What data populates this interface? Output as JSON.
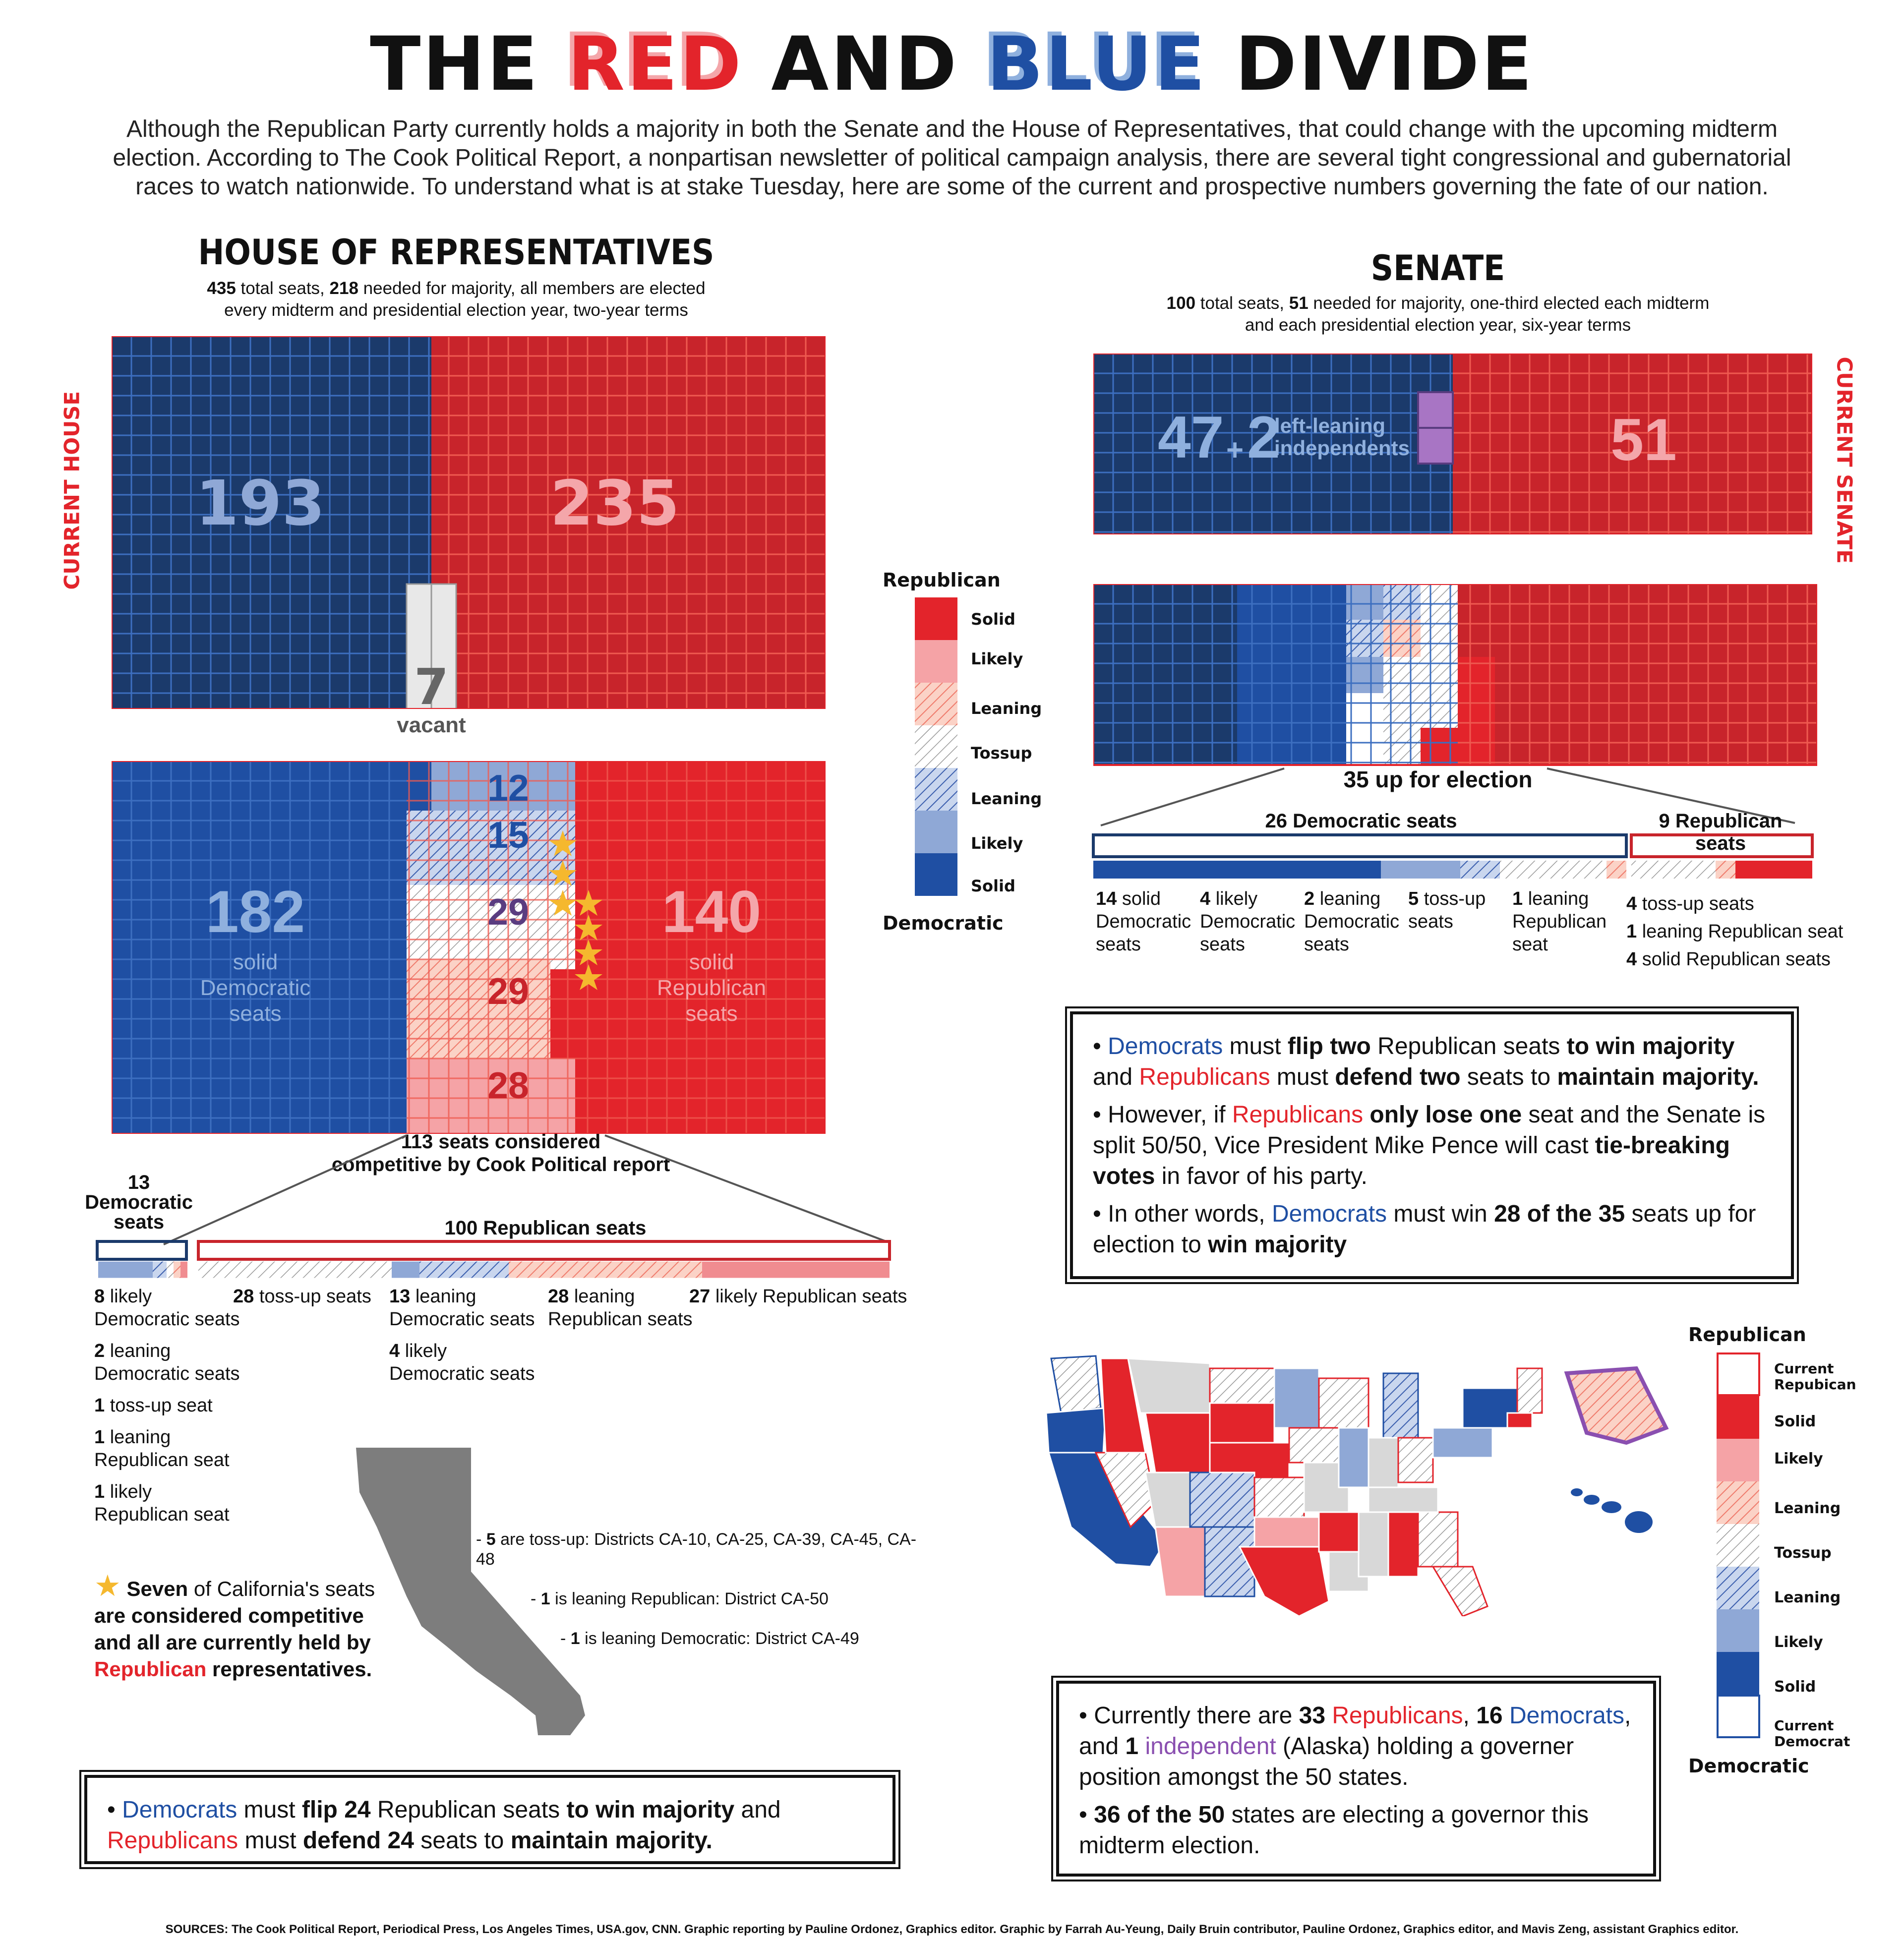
{
  "title": {
    "part1": "THE ",
    "red": "RED",
    "part2": " AND ",
    "blue": "BLUE",
    "part3": " DIVIDE"
  },
  "intro": "Although the Republican Party currently holds a majority in both the Senate and the House of Representatives, that could change with the upcoming midterm election. According to The Cook Political Report, a nonpartisan newsletter of political campaign analysis, there are several tight congressional and gubernatorial races to watch nationwide. To understand what is at stake Tuesday, here are some of the current and prospective numbers governing the fate of our nation.",
  "house": {
    "heading": "HOUSE OF REPRESENTATIVES",
    "sub_total": "435",
    "sub_t1": " total seats, ",
    "sub_majority": "218",
    "sub_t2": " needed for majority, all members are elected",
    "sub_line2": "every midterm and presidential election year, two-year terms",
    "current_label": "CURRENT HOUSE",
    "current": {
      "dem": "193",
      "rep": "235",
      "vacant": "7",
      "vacant_label": "vacant"
    },
    "forecast": {
      "solid_dem": "182",
      "solid_dem_label": [
        "solid",
        "Democratic",
        "seats"
      ],
      "likely_dem": "12",
      "lean_dem": "15",
      "tossup": "29",
      "lean_rep": "29",
      "likely_rep": "28",
      "solid_rep": "140",
      "solid_rep_label": [
        "solid",
        "Republican",
        "seats"
      ]
    },
    "competitive_num": "113",
    "competitive_t1": " seats considered",
    "competitive_t2": "competitive by Cook Political report",
    "dem_group_num": "13",
    "dem_group_label": "Democratic seats",
    "rep_group_label": "100 Republican seats",
    "breakdown_left": [
      {
        "n": "8",
        "t": " likely",
        "t2": "Democratic seats"
      },
      {
        "n": "2",
        "t": " leaning",
        "t2": "Democratic seats"
      },
      {
        "n": "1",
        "t": " toss-up seat",
        "t2": ""
      },
      {
        "n": "1",
        "t": " leaning",
        "t2": "Republican seat"
      },
      {
        "n": "1",
        "t": " likely",
        "t2": "Republican seat"
      }
    ],
    "breakdown_right": [
      {
        "n": "28",
        "t": " toss-up seats",
        "t2": ""
      },
      {
        "n": "13",
        "t": " leaning",
        "t2": "Democratic seats"
      },
      {
        "n": "4",
        "t": " likely",
        "t2": "Democratic seats"
      },
      {
        "n": "28",
        "t": " leaning",
        "t2": "Republican seats"
      },
      {
        "n": "27",
        "t": " likely Republican seats",
        "t2": ""
      }
    ],
    "ca_note": {
      "bold": "Seven",
      "t1": " of California's seats",
      "t2": "are considered competitive",
      "t3": "and all are currently held by",
      "rep": "Republican",
      "t4": " representatives."
    },
    "ca_list": [
      {
        "n": "5",
        "t": " are toss-up: Districts CA-10, CA-25, CA-39, CA-45, CA-48"
      },
      {
        "n": "1",
        "t": " is leaning Republican: District CA-50"
      },
      {
        "n": "1",
        "t": " is leaning Democratic: District CA-49"
      }
    ],
    "box": {
      "dem": "Democrats",
      "t1": " must ",
      "b1": "flip 24",
      "t2": " Republican seats ",
      "b2": "to win majority",
      "t3": " and ",
      "rep": "Republicans",
      "t4": " must ",
      "b3": "defend 24",
      "t5": " seats to ",
      "b4": "maintain majority."
    }
  },
  "senate": {
    "heading": "SENATE",
    "sub_total": "100",
    "sub_t1": " total seats, ",
    "sub_majority": "51",
    "sub_t2": " needed for majority, one-third elected each midterm",
    "sub_line2": "and each presidential election year, six-year terms",
    "current_label": "CURRENT SENATE",
    "current": {
      "dem": "47",
      "plus": "+",
      "ind": "2",
      "ind_label_1": "left-leaning",
      "ind_label_2": "independents",
      "rep": "51"
    },
    "up_num": "35",
    "up_t": " up for election",
    "dem_group": "26 Democratic seats",
    "rep_group": "9 Republican seats",
    "breakdown": [
      {
        "n": "14",
        "t": " solid",
        "t2": "Democratic",
        "t3": "seats"
      },
      {
        "n": "4",
        "t": " likely",
        "t2": "Democratic",
        "t3": "seats"
      },
      {
        "n": "2",
        "t": " leaning",
        "t2": "Democratic",
        "t3": "seats"
      },
      {
        "n": "5",
        "t": " toss-up",
        "t2": "seats",
        "t3": ""
      },
      {
        "n": "1",
        "t": " leaning",
        "t2": "Republican",
        "t3": "seat"
      }
    ],
    "breakdown_rep": [
      {
        "n": "4",
        "t": " toss-up seats"
      },
      {
        "n": "1",
        "t": " leaning Republican seat"
      },
      {
        "n": "4",
        "t": " solid Republican seats"
      }
    ],
    "box": {
      "p1": {
        "dem": "Democrats",
        "t1": " must ",
        "b1": "flip two",
        "t2": " Republican seats ",
        "b2": "to win majority",
        "t3": " and ",
        "rep": "Republicans",
        "t4": " must ",
        "b3": "defend two",
        "t5": " seats to ",
        "b4": "maintain majority."
      },
      "p2": {
        "t1": "However, if ",
        "rep": "Republicans",
        "b1": " only lose one",
        "t2": " seat and the Senate is split 50/50, Vice President Mike Pence will cast ",
        "b2": "tie-breaking votes",
        "t3": " in favor of his party."
      },
      "p3": {
        "t1": "In other words, ",
        "dem": "Democrats",
        "t2": " must win ",
        "b1": "28 of the 35",
        "t3": " seats up for election to ",
        "b2": "win majority"
      }
    }
  },
  "legend": {
    "top": "Republican",
    "bottom": "Democratic",
    "items": [
      "Solid",
      "Likely",
      "Leaning",
      "Tossup",
      "Leaning",
      "Likely",
      "Solid"
    ]
  },
  "gov_legend": {
    "top": "Republican",
    "bottom": "Democratic",
    "items": [
      "Current Repubican",
      "Solid",
      "Likely",
      "Leaning",
      "Tossup",
      "Leaning",
      "Likely",
      "Solid",
      "Current Democrat"
    ]
  },
  "gov_box": {
    "t1": "Currently there are ",
    "b1": "33",
    "rep": " Republicans",
    "t2": ", ",
    "b2": "16",
    "dem": " Democrats",
    "t3": ", and ",
    "b3": "1",
    "ind": " independent",
    "t4": " (Alaska) holding a governer position amongst the 50 states.",
    "p2b": "36 of the 50",
    "p2t": " states are electing a governor this midterm election."
  },
  "footer": "SOURCES: The Cook Political Report, Periodical Press, Los Angeles Times, USA.gov, CNN. Graphic reporting by Pauline Ordonez, Graphics editor. Graphic by Farrah Au-Yeung, Daily Bruin contributor, Pauline Ordonez, Graphics editor, and Mavis Zeng, assistant Graphics editor.",
  "colors": {
    "solid_dem": "#1f4fa3",
    "likely_dem": "#8fa8d6",
    "solid_rep": "#e3242b",
    "likely_rep": "#f08c90",
    "dark_dem": "#1b3a6b",
    "dark_rep": "#c8242b",
    "ind": "#a875c4"
  }
}
